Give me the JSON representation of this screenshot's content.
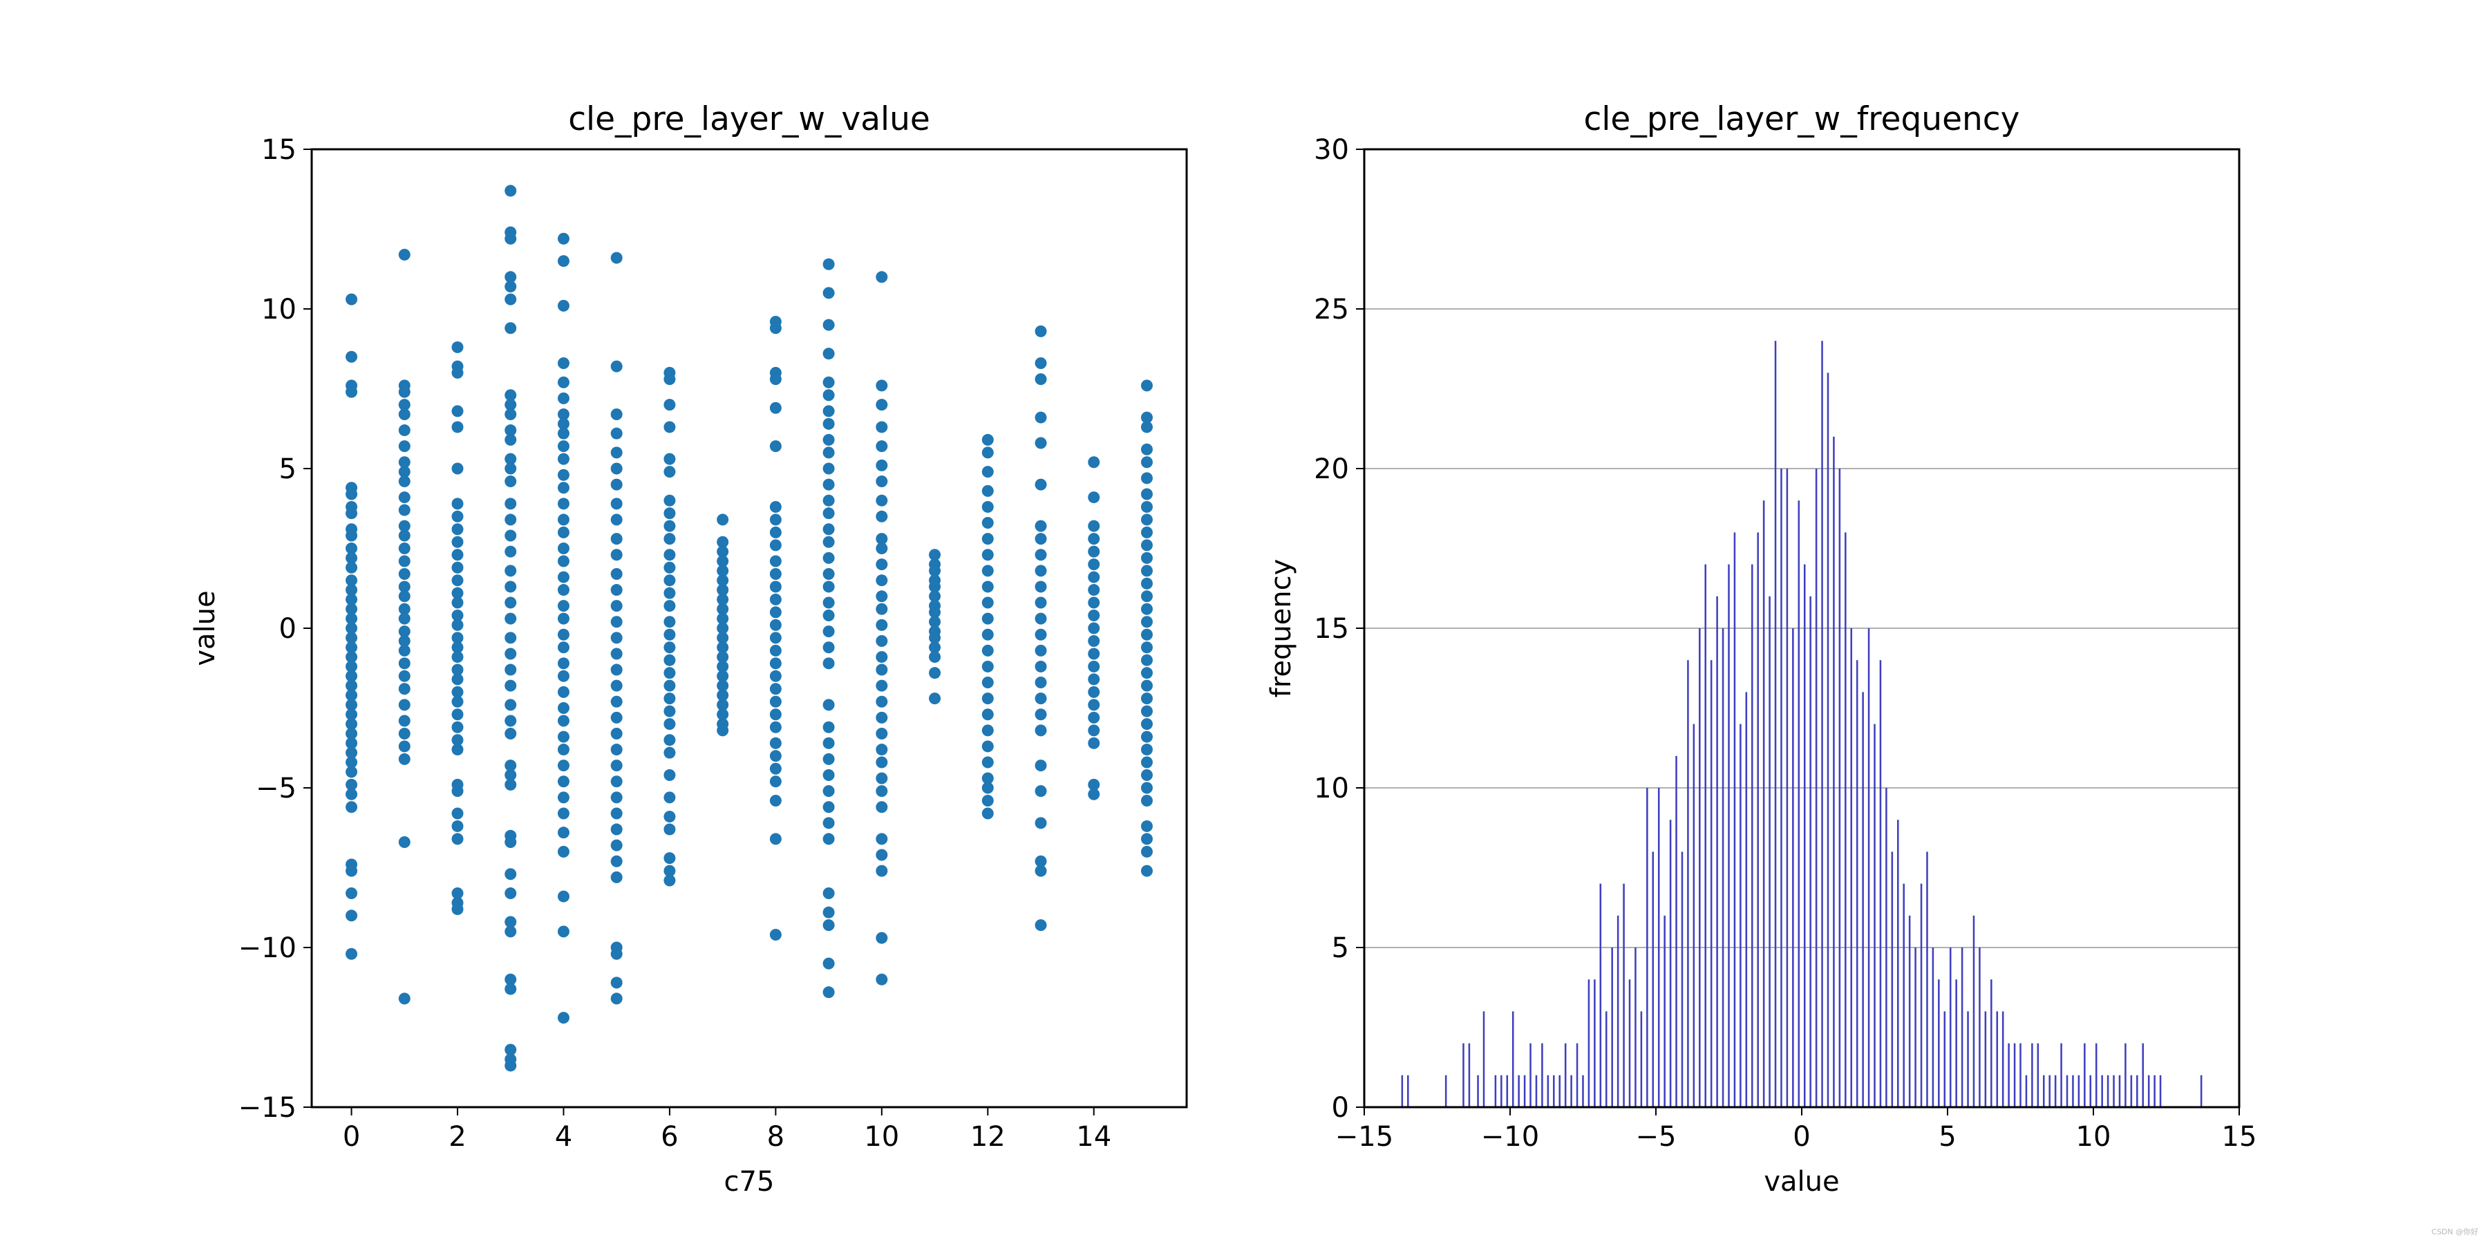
{
  "watermark": "CSDN @你好",
  "chart_data": [
    {
      "type": "scatter",
      "title": "cle_pre_layer_w_value",
      "xlabel": "c75",
      "ylabel": "value",
      "xlim": [
        -0.75,
        15.75
      ],
      "ylim": [
        -15,
        15
      ],
      "xticks": [
        0,
        2,
        4,
        6,
        8,
        10,
        12,
        14
      ],
      "yticks": [
        -15,
        -10,
        -5,
        0,
        5,
        10,
        15
      ],
      "grid": false,
      "color": "#1f77b4",
      "columns": [
        {
          "x": 0,
          "y": [
            10.3,
            8.5,
            7.6,
            7.4,
            4.4,
            4.2,
            3.8,
            3.6,
            3.1,
            2.9,
            2.5,
            2.2,
            1.9,
            1.5,
            1.2,
            0.9,
            0.6,
            0.3,
            0.0,
            -0.3,
            -0.6,
            -0.9,
            -1.2,
            -1.5,
            -1.8,
            -2.1,
            -2.4,
            -2.7,
            -3.0,
            -3.3,
            -3.6,
            -3.9,
            -4.2,
            -4.5,
            -4.9,
            -5.2,
            -5.6,
            -7.4,
            -7.6,
            -8.3,
            -9.0,
            -10.2
          ]
        },
        {
          "x": 1,
          "y": [
            11.7,
            7.6,
            7.4,
            7.0,
            6.7,
            6.2,
            5.7,
            5.2,
            4.9,
            4.6,
            4.1,
            3.7,
            3.2,
            2.9,
            2.5,
            2.1,
            1.7,
            1.3,
            1.0,
            0.6,
            0.3,
            -0.1,
            -0.4,
            -0.7,
            -1.1,
            -1.5,
            -1.9,
            -2.4,
            -2.9,
            -3.3,
            -3.7,
            -4.1,
            -6.7,
            -11.6
          ]
        },
        {
          "x": 2,
          "y": [
            8.8,
            8.2,
            8.0,
            6.8,
            6.3,
            5.0,
            3.9,
            3.5,
            3.1,
            2.7,
            2.3,
            1.9,
            1.5,
            1.1,
            0.8,
            0.4,
            0.1,
            -0.3,
            -0.6,
            -0.9,
            -1.3,
            -1.6,
            -2.0,
            -2.3,
            -2.7,
            -3.1,
            -3.5,
            -3.8,
            -4.9,
            -5.1,
            -5.8,
            -6.2,
            -6.6,
            -8.3,
            -8.6,
            -8.8
          ]
        },
        {
          "x": 3,
          "y": [
            13.7,
            12.4,
            12.2,
            11.0,
            10.7,
            10.3,
            9.4,
            7.3,
            7.0,
            6.7,
            6.2,
            5.9,
            5.3,
            5.0,
            4.6,
            3.9,
            3.4,
            2.9,
            2.4,
            1.8,
            1.3,
            0.8,
            0.3,
            -0.3,
            -0.8,
            -1.3,
            -1.8,
            -2.4,
            -2.9,
            -3.3,
            -4.3,
            -4.6,
            -4.9,
            -6.5,
            -6.7,
            -7.7,
            -8.3,
            -9.2,
            -9.5,
            -11.0,
            -11.3,
            -13.2,
            -13.5,
            -13.7
          ]
        },
        {
          "x": 4,
          "y": [
            12.2,
            11.5,
            10.1,
            8.3,
            7.7,
            7.2,
            6.7,
            6.4,
            6.1,
            5.7,
            5.3,
            4.8,
            4.4,
            3.9,
            3.4,
            3.0,
            2.5,
            2.1,
            1.6,
            1.2,
            0.7,
            0.3,
            -0.2,
            -0.6,
            -1.1,
            -1.5,
            -2.0,
            -2.5,
            -2.9,
            -3.4,
            -3.8,
            -4.3,
            -4.8,
            -5.3,
            -5.8,
            -6.4,
            -7.0,
            -8.4,
            -9.5,
            -12.2
          ]
        },
        {
          "x": 5,
          "y": [
            11.6,
            8.2,
            6.7,
            6.1,
            5.5,
            5.0,
            4.5,
            3.9,
            3.4,
            2.8,
            2.3,
            1.7,
            1.2,
            0.7,
            0.2,
            -0.3,
            -0.8,
            -1.3,
            -1.8,
            -2.3,
            -2.8,
            -3.3,
            -3.8,
            -4.3,
            -4.8,
            -5.3,
            -5.8,
            -6.3,
            -6.8,
            -7.3,
            -7.8,
            -10.0,
            -10.2,
            -11.1,
            -11.6
          ]
        },
        {
          "x": 6,
          "y": [
            8.0,
            7.8,
            7.0,
            6.3,
            5.3,
            4.9,
            4.0,
            3.6,
            3.2,
            2.8,
            2.3,
            1.9,
            1.5,
            1.1,
            0.7,
            0.2,
            -0.2,
            -0.6,
            -1.0,
            -1.4,
            -1.8,
            -2.2,
            -2.6,
            -3.0,
            -3.5,
            -3.9,
            -4.6,
            -5.3,
            -5.9,
            -6.3,
            -7.2,
            -7.6,
            -7.9
          ]
        },
        {
          "x": 7,
          "y": [
            3.4,
            2.7,
            2.4,
            2.1,
            1.8,
            1.5,
            1.2,
            0.9,
            0.6,
            0.3,
            0.0,
            -0.3,
            -0.6,
            -0.9,
            -1.2,
            -1.5,
            -1.8,
            -2.1,
            -2.4,
            -2.7,
            -3.0,
            -3.2
          ]
        },
        {
          "x": 8,
          "y": [
            9.6,
            9.4,
            8.0,
            7.8,
            6.9,
            5.7,
            3.8,
            3.4,
            3.0,
            2.6,
            2.1,
            1.7,
            1.3,
            0.9,
            0.5,
            0.1,
            -0.3,
            -0.7,
            -1.1,
            -1.5,
            -1.9,
            -2.3,
            -2.7,
            -3.1,
            -3.6,
            -4.0,
            -4.4,
            -4.8,
            -5.4,
            -6.6,
            -9.6
          ]
        },
        {
          "x": 9,
          "y": [
            11.4,
            10.5,
            9.5,
            8.6,
            7.7,
            7.3,
            6.8,
            6.4,
            5.9,
            5.5,
            5.0,
            4.5,
            4.0,
            3.6,
            3.1,
            2.7,
            2.2,
            1.7,
            1.3,
            0.8,
            0.4,
            -0.1,
            -0.6,
            -1.1,
            -2.4,
            -3.1,
            -3.6,
            -4.1,
            -4.6,
            -5.1,
            -5.6,
            -6.1,
            -6.6,
            -8.3,
            -8.9,
            -9.3,
            -10.5,
            -11.4
          ]
        },
        {
          "x": 10,
          "y": [
            11.0,
            7.6,
            7.0,
            6.3,
            5.7,
            5.1,
            4.6,
            4.0,
            3.5,
            2.8,
            2.5,
            2.0,
            1.5,
            1.0,
            0.6,
            0.1,
            -0.4,
            -0.9,
            -1.3,
            -1.8,
            -2.3,
            -2.8,
            -3.3,
            -3.8,
            -4.2,
            -4.7,
            -5.1,
            -5.6,
            -6.6,
            -7.1,
            -7.6,
            -9.7,
            -11.0
          ]
        },
        {
          "x": 11,
          "y": [
            2.3,
            2.0,
            1.8,
            1.5,
            1.3,
            1.0,
            0.7,
            0.5,
            0.2,
            -0.1,
            -0.3,
            -0.6,
            -0.9,
            -1.4,
            -2.2
          ]
        },
        {
          "x": 12,
          "y": [
            5.9,
            5.5,
            4.9,
            4.3,
            3.8,
            3.3,
            2.8,
            2.3,
            1.8,
            1.3,
            0.8,
            0.3,
            -0.2,
            -0.7,
            -1.2,
            -1.7,
            -2.2,
            -2.7,
            -3.2,
            -3.7,
            -4.2,
            -4.7,
            -5.0,
            -5.4,
            -5.8
          ]
        },
        {
          "x": 13,
          "y": [
            9.3,
            8.3,
            7.8,
            6.6,
            5.8,
            4.5,
            3.2,
            2.8,
            2.3,
            1.8,
            1.3,
            0.8,
            0.3,
            -0.2,
            -0.7,
            -1.2,
            -1.7,
            -2.2,
            -2.7,
            -3.2,
            -4.3,
            -5.1,
            -6.1,
            -7.3,
            -7.6,
            -9.3
          ]
        },
        {
          "x": 14,
          "y": [
            5.2,
            4.1,
            3.2,
            2.8,
            2.4,
            2.0,
            1.6,
            1.2,
            0.8,
            0.4,
            0.0,
            -0.4,
            -0.8,
            -1.2,
            -1.6,
            -2.0,
            -2.4,
            -2.8,
            -3.2,
            -3.6,
            -4.9,
            -5.2
          ]
        },
        {
          "x": 15,
          "y": [
            7.6,
            6.6,
            6.3,
            5.6,
            5.2,
            4.7,
            4.2,
            3.8,
            3.4,
            3.0,
            2.6,
            2.2,
            1.8,
            1.4,
            1.0,
            0.6,
            0.2,
            -0.2,
            -0.6,
            -1.0,
            -1.4,
            -1.8,
            -2.2,
            -2.6,
            -3.0,
            -3.4,
            -3.8,
            -4.2,
            -4.6,
            -5.0,
            -5.4,
            -6.2,
            -6.6,
            -7.0,
            -7.6
          ]
        }
      ]
    },
    {
      "type": "bar",
      "title": "cle_pre_layer_w_frequency",
      "xlabel": "value",
      "ylabel": "frequency",
      "xlim": [
        -15,
        15
      ],
      "ylim": [
        0,
        30
      ],
      "xticks": [
        -15,
        -10,
        -5,
        0,
        5,
        10,
        15
      ],
      "yticks": [
        0,
        5,
        10,
        15,
        20,
        25,
        30
      ],
      "grid": "horizontal",
      "color": "#3f3fbf",
      "bar_width": 0.06,
      "x": [
        -13.7,
        -13.5,
        -12.2,
        -11.6,
        -11.4,
        -11.1,
        -10.9,
        -10.5,
        -10.3,
        -10.1,
        -9.9,
        -9.7,
        -9.5,
        -9.3,
        -9.1,
        -8.9,
        -8.7,
        -8.5,
        -8.3,
        -8.1,
        -7.9,
        -7.7,
        -7.5,
        -7.3,
        -7.1,
        -6.9,
        -6.7,
        -6.5,
        -6.3,
        -6.1,
        -5.9,
        -5.7,
        -5.5,
        -5.3,
        -5.1,
        -4.9,
        -4.7,
        -4.5,
        -4.3,
        -4.1,
        -3.9,
        -3.7,
        -3.5,
        -3.3,
        -3.1,
        -2.9,
        -2.7,
        -2.5,
        -2.3,
        -2.1,
        -1.9,
        -1.7,
        -1.5,
        -1.3,
        -1.1,
        -0.9,
        -0.7,
        -0.5,
        -0.3,
        -0.1,
        0.1,
        0.3,
        0.5,
        0.7,
        0.9,
        1.1,
        1.3,
        1.5,
        1.7,
        1.9,
        2.1,
        2.3,
        2.5,
        2.7,
        2.9,
        3.1,
        3.3,
        3.5,
        3.7,
        3.9,
        4.1,
        4.3,
        4.5,
        4.7,
        4.9,
        5.1,
        5.3,
        5.5,
        5.7,
        5.9,
        6.1,
        6.3,
        6.5,
        6.7,
        6.9,
        7.1,
        7.3,
        7.5,
        7.7,
        7.9,
        8.1,
        8.3,
        8.5,
        8.7,
        8.9,
        9.1,
        9.3,
        9.5,
        9.7,
        9.9,
        10.1,
        10.3,
        10.5,
        10.7,
        10.9,
        11.1,
        11.3,
        11.5,
        11.7,
        11.9,
        12.1,
        12.3,
        13.7
      ],
      "values": [
        1,
        1,
        1,
        2,
        2,
        1,
        3,
        1,
        1,
        1,
        3,
        1,
        1,
        2,
        1,
        2,
        1,
        1,
        1,
        2,
        1,
        2,
        1,
        4,
        4,
        7,
        3,
        5,
        6,
        7,
        4,
        5,
        3,
        10,
        8,
        10,
        6,
        9,
        11,
        8,
        14,
        12,
        15,
        17,
        14,
        16,
        15,
        17,
        18,
        12,
        13,
        17,
        18,
        19,
        16,
        24,
        20,
        20,
        15,
        19,
        17,
        16,
        20,
        24,
        23,
        21,
        20,
        18,
        15,
        14,
        13,
        15,
        12,
        14,
        10,
        8,
        9,
        7,
        6,
        5,
        7,
        8,
        5,
        4,
        3,
        5,
        4,
        5,
        3,
        6,
        5,
        3,
        4,
        3,
        3,
        2,
        2,
        2,
        1,
        2,
        2,
        1,
        1,
        1,
        2,
        1,
        1,
        1,
        2,
        1,
        2,
        1,
        1,
        1,
        1,
        2,
        1,
        1,
        2,
        1,
        1,
        1,
        1
      ]
    }
  ]
}
